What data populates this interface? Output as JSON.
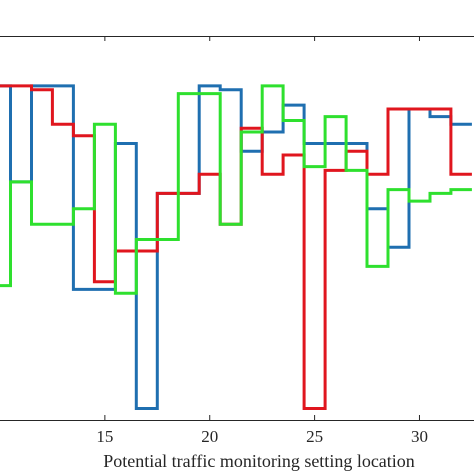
{
  "chart_data": {
    "type": "line",
    "step": true,
    "xlabel": "Potential traffic monitoring setting location",
    "ylabel": "",
    "title": "",
    "x_ticks": [
      15,
      20,
      25,
      30
    ],
    "xlim": [
      10.0,
      32.6
    ],
    "ylim": [
      0,
      1
    ],
    "grid": false,
    "legend": "none",
    "x": [
      10,
      11,
      12,
      13,
      14,
      15,
      16,
      17,
      18,
      19,
      20,
      21,
      22,
      23,
      24,
      25,
      26,
      27,
      28,
      29,
      30,
      31,
      32
    ],
    "series": [
      {
        "color": "#1f6fb0",
        "values": [
          0.87,
          0.62,
          0.87,
          0.87,
          0.34,
          0.34,
          0.72,
          0.03,
          0.59,
          0.59,
          0.87,
          0.86,
          0.7,
          0.75,
          0.82,
          0.72,
          0.72,
          0.72,
          0.55,
          0.45,
          0.81,
          0.79,
          0.77
        ]
      },
      {
        "color": "#e0161e",
        "values": [
          0.87,
          0.87,
          0.86,
          0.77,
          0.74,
          0.36,
          0.44,
          0.44,
          0.59,
          0.59,
          0.64,
          0.51,
          0.76,
          0.64,
          0.69,
          0.03,
          0.65,
          0.7,
          0.64,
          0.81,
          0.81,
          0.81,
          0.64
        ]
      },
      {
        "color": "#2ee02e",
        "values": [
          0.35,
          0.62,
          0.51,
          0.51,
          0.55,
          0.77,
          0.33,
          0.47,
          0.47,
          0.85,
          0.85,
          0.51,
          0.75,
          0.87,
          0.78,
          0.66,
          0.79,
          0.65,
          0.4,
          0.6,
          0.57,
          0.59,
          0.6
        ]
      }
    ]
  }
}
